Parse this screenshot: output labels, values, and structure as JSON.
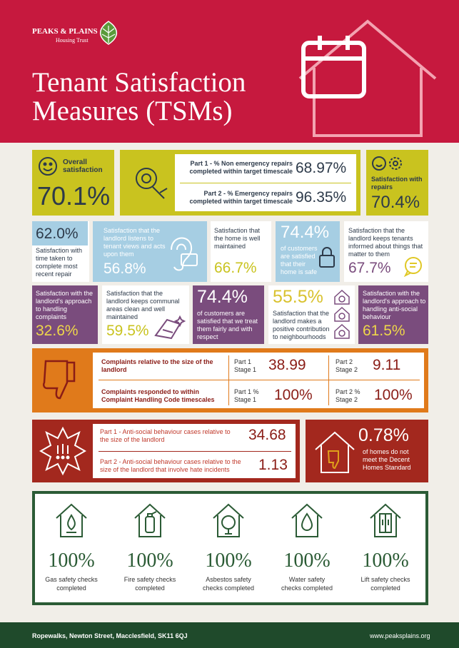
{
  "header": {
    "logo_name": "PEAKS & PLAINS",
    "logo_sub": "Housing Trust",
    "title": [
      "Tenant Satisfaction",
      "Measures (TSMs)"
    ]
  },
  "overall": {
    "label": "Overall satisfaction",
    "value": "70.1%"
  },
  "repairs": {
    "rows": [
      {
        "label": "Part 1 - % Non emergency repairs completed within target timescale",
        "value": "68.97%"
      },
      {
        "label": "Part 2 - % Emergency repairs completed within target timescale",
        "value": "96.35%"
      }
    ]
  },
  "repairs_satisfaction": {
    "label": "Satisfaction with repairs",
    "value": "70.4%"
  },
  "row2": [
    {
      "value": "62.0%",
      "label": "Satisfaction with time taken to complete most recent repair"
    },
    {
      "label": "Satisfaction that the landlord listens to tenant views and acts upon them",
      "value": "56.8%"
    },
    {
      "label": "Satisfaction that the home is well maintained",
      "value": "66.7%"
    },
    {
      "value": "74.4%",
      "label": "of customers are satisfied that their home is safe"
    },
    {
      "label": "Satisfaction that the landlord keeps tenants informed about things that matter to them",
      "value": "67.7%"
    }
  ],
  "row3": [
    {
      "label": "Satisfaction with the landlord's approach to handling complaints",
      "value": "32.6%"
    },
    {
      "label": "Satisfaction that the landlord keeps communal areas clean and well maintained",
      "value": "59.5%"
    },
    {
      "value": "74.4%",
      "label": "of customers are satisfied that we treat them fairly and with respect"
    },
    {
      "value": "55.5%",
      "label": "Satisfaction that the landlord makes a positive contribution to neighbourhoods"
    },
    {
      "label": "Satisfaction with the landlord's approach to handling anti-social behaviour",
      "value": "61.5%"
    }
  ],
  "complaints": {
    "rows": [
      {
        "label": "Complaints relative to the size of the landlord",
        "part1_label": "Part 1 Stage 1",
        "part1_value": "38.99",
        "part2_label": "Part 2 Stage 2",
        "part2_value": "9.11"
      },
      {
        "label": "Complaints responded to within Complaint Handling Code timescales",
        "part1_label": "Part 1 % Stage 1",
        "part1_value": "100%",
        "part2_label": "Part 2 % Stage 2",
        "part2_value": "100%"
      }
    ]
  },
  "asb": {
    "rows": [
      {
        "label": "Part 1 - Anti-social behaviour cases relative to the size of the landlord",
        "value": "34.68"
      },
      {
        "label": "Part 2 - Anti-social behaviour cases relative to the size of the landlord that involve hate incidents",
        "value": "1.13"
      }
    ]
  },
  "decent_homes": {
    "value": "0.78%",
    "label": "of homes do not meet the Decent Homes Standard"
  },
  "safety": [
    {
      "value": "100%",
      "label": "Gas safety checks completed"
    },
    {
      "value": "100%",
      "label": "Fire safety checks completed"
    },
    {
      "value": "100%",
      "label": "Asbestos safety checks completed"
    },
    {
      "value": "100%",
      "label": "Water safety checks completed"
    },
    {
      "value": "100%",
      "label": "Lift safety checks completed"
    }
  ],
  "footer": {
    "address": "Ropewalks, Newton Street, Macclesfield, SK11 6QJ",
    "url": "www.peaksplains.org"
  }
}
